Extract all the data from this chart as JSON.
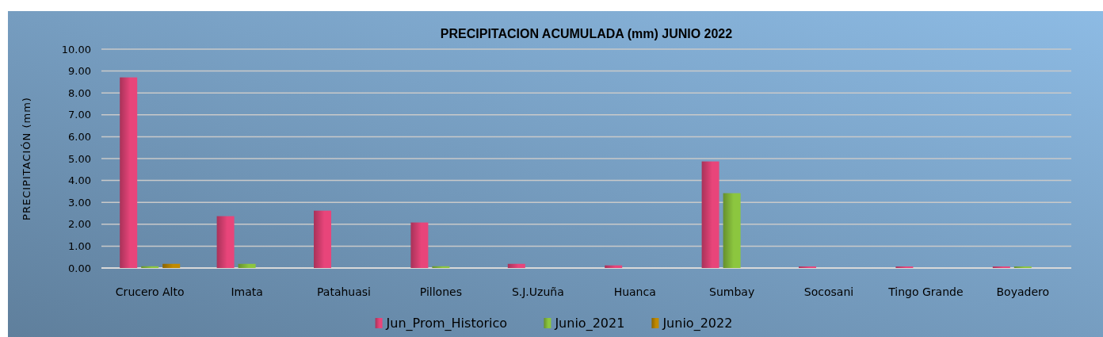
{
  "chart_data": {
    "type": "bar",
    "title": "PRECIPITACION ACUMULADA (mm)   JUNIO 2022",
    "ylabel": "PRECIPITACIÓN (mm)",
    "categories": [
      "Crucero Alto",
      "Imata",
      "Patahuasi",
      "Pillones",
      "S.J.Uzuña",
      "Huanca",
      "Sumbay",
      "Socosani",
      "Tingo Grande",
      "Boyadero"
    ],
    "series": [
      {
        "name": "Jun_Prom_Historico",
        "color": "#e8457a",
        "values": [
          8.71,
          2.37,
          2.62,
          2.08,
          0.19,
          0.12,
          4.87,
          0.07,
          0.07,
          0.07
        ]
      },
      {
        "name": "Junio_2021",
        "color": "#8cc63f",
        "values": [
          0.08,
          0.19,
          0,
          0.08,
          0,
          0,
          3.42,
          0,
          0,
          0.07
        ]
      },
      {
        "name": "Junio_2022",
        "color": "#c08a00",
        "values": [
          0.19,
          0,
          0,
          0,
          0,
          0,
          0,
          0,
          0,
          0
        ]
      }
    ],
    "ylim": [
      0,
      10
    ],
    "yticks": [
      {
        "value": 0,
        "label": "0.00"
      },
      {
        "value": 1,
        "label": "1.00"
      },
      {
        "value": 2,
        "label": "2.00"
      },
      {
        "value": 3,
        "label": "3.00"
      },
      {
        "value": 4,
        "label": "4.00"
      },
      {
        "value": 5,
        "label": "5.00"
      },
      {
        "value": 6,
        "label": "6.00"
      },
      {
        "value": 7,
        "label": "7.00"
      },
      {
        "value": 8,
        "label": "8.00"
      },
      {
        "value": 9,
        "label": "9.00"
      },
      {
        "value": 10,
        "label": "10.00"
      }
    ],
    "grid": "y",
    "legend": "bottom"
  }
}
